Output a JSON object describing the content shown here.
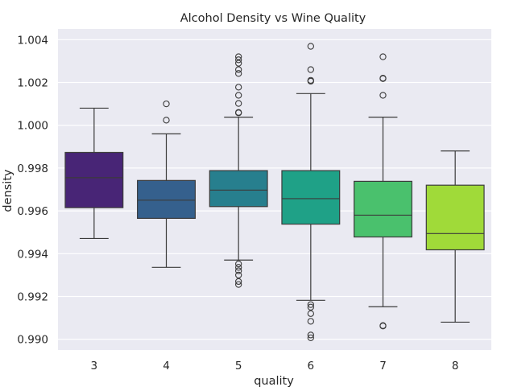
{
  "chart_data": {
    "type": "box",
    "title": "Alcohol Density vs Wine Quality",
    "xlabel": "quality",
    "ylabel": "density",
    "categories": [
      "3",
      "4",
      "5",
      "6",
      "7",
      "8"
    ],
    "yticks": [
      "0.990",
      "0.992",
      "0.994",
      "0.996",
      "0.998",
      "1.000",
      "1.002",
      "1.004"
    ],
    "ylim": [
      0.9895,
      1.0045
    ],
    "grid": true,
    "background": "#eaeaf2",
    "edge_color": "#3b3b3b",
    "boxes": [
      {
        "category": "3",
        "q1": 0.99615,
        "median": 0.99755,
        "q3": 0.99873,
        "whisker_low": 0.99471,
        "whisker_high": 1.0008,
        "outliers": [],
        "color": "#482576"
      },
      {
        "category": "4",
        "q1": 0.99565,
        "median": 0.9965,
        "q3": 0.99742,
        "whisker_low": 0.99336,
        "whisker_high": 0.9996,
        "outliers": [
          1.001,
          1.00024
        ],
        "color": "#35608d"
      },
      {
        "category": "5",
        "q1": 0.9962,
        "median": 0.99697,
        "q3": 0.99788,
        "whisker_low": 0.9937,
        "whisker_high": 1.00038,
        "outliers": [
          1.0032,
          1.00306,
          1.0029,
          1.0026,
          1.00242,
          1.00178,
          1.0014,
          1.00102,
          1.0006,
          1.00058,
          0.99352,
          0.99336,
          0.9932,
          0.993,
          0.9927,
          0.99256
        ],
        "color": "#277f8e"
      },
      {
        "category": "6",
        "q1": 0.99538,
        "median": 0.99657,
        "q3": 0.99788,
        "whisker_low": 0.99182,
        "whisker_high": 1.00148,
        "outliers": [
          1.00369,
          1.0026,
          1.0021,
          1.00206,
          0.99162,
          0.9915,
          0.9912,
          0.99084,
          0.9902,
          0.99007
        ],
        "color": "#1fa187"
      },
      {
        "category": "7",
        "q1": 0.99478,
        "median": 0.9958,
        "q3": 0.99738,
        "whisker_low": 0.99152,
        "whisker_high": 1.00038,
        "outliers": [
          1.0032,
          1.0022,
          1.00218,
          1.0014,
          0.99064,
          0.99062
        ],
        "color": "#4ac16d"
      },
      {
        "category": "8",
        "q1": 0.99418,
        "median": 0.99494,
        "q3": 0.9972,
        "whisker_low": 0.9908,
        "whisker_high": 0.9988,
        "outliers": [],
        "color": "#a0da39"
      }
    ]
  }
}
